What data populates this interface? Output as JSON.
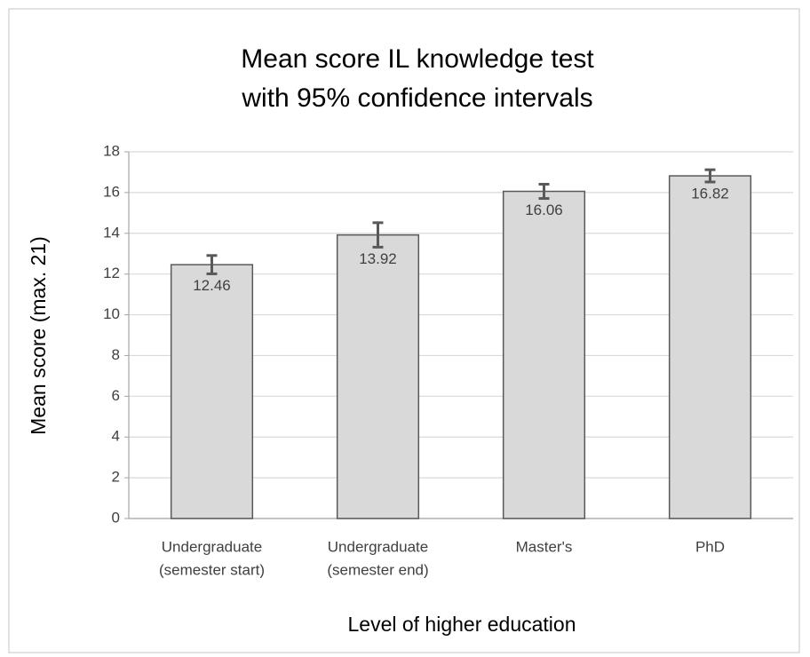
{
  "chart_data": {
    "type": "bar",
    "title": [
      "Mean score IL knowledge test",
      "with 95% confidence intervals"
    ],
    "x_label": "Level of higher education",
    "y_label": "Mean score (max. 21)",
    "categories": [
      [
        "Undergraduate",
        "(semester start)"
      ],
      [
        "Undergraduate",
        "(semester end)"
      ],
      [
        "Master's"
      ],
      [
        "PhD"
      ]
    ],
    "values": [
      12.46,
      13.92,
      16.06,
      16.82
    ],
    "errors": [
      0.45,
      0.6,
      0.35,
      0.3
    ],
    "color": "#d9d9d9",
    "edge_color": "#595959",
    "error_color": "#595959",
    "ylim": [
      0,
      18
    ],
    "yticks": [
      0,
      2,
      4,
      6,
      8,
      10,
      12,
      14,
      16,
      18
    ],
    "grid": true
  }
}
